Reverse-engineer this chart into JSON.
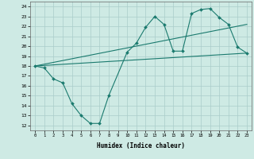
{
  "xlabel": "Humidex (Indice chaleur)",
  "bg_color": "#ceeae4",
  "grid_color": "#aaccca",
  "line_color": "#1a7a6e",
  "xlim": [
    -0.5,
    23.5
  ],
  "ylim": [
    11.5,
    24.5
  ],
  "xticks": [
    0,
    1,
    2,
    3,
    4,
    5,
    6,
    7,
    8,
    9,
    10,
    11,
    12,
    13,
    14,
    15,
    16,
    17,
    18,
    19,
    20,
    21,
    22,
    23
  ],
  "yticks": [
    12,
    13,
    14,
    15,
    16,
    17,
    18,
    19,
    20,
    21,
    22,
    23,
    24
  ],
  "line1_x": [
    0,
    1,
    2,
    3,
    4,
    5,
    6,
    7,
    8,
    10,
    11,
    12,
    13,
    14,
    15,
    16,
    17,
    18,
    19,
    20,
    21,
    22,
    23
  ],
  "line1_y": [
    18.0,
    17.8,
    16.7,
    16.3,
    14.2,
    13.0,
    12.2,
    12.2,
    15.0,
    19.4,
    20.3,
    21.9,
    23.0,
    22.2,
    19.5,
    19.5,
    23.3,
    23.7,
    23.8,
    22.9,
    22.2,
    19.9,
    19.3
  ],
  "line2_x": [
    0,
    23
  ],
  "line2_y": [
    18.0,
    22.2
  ],
  "line3_x": [
    0,
    23
  ],
  "line3_y": [
    18.0,
    19.3
  ]
}
